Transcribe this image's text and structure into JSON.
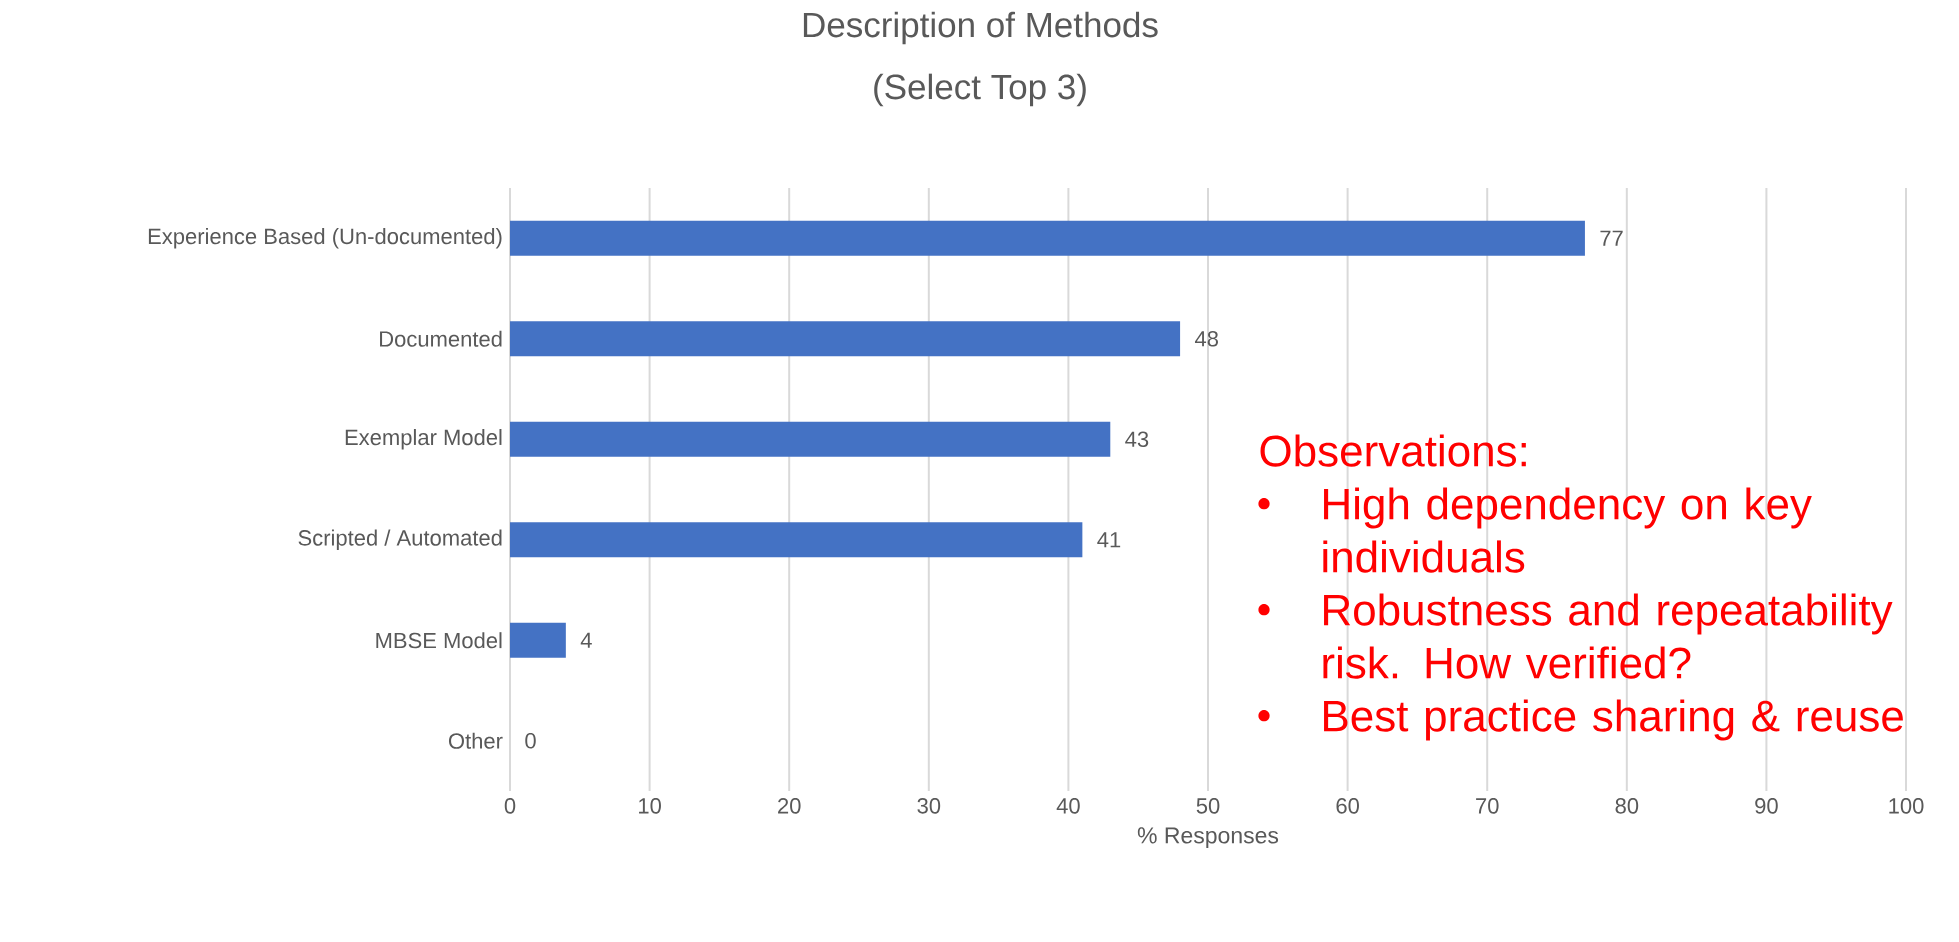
{
  "chart_data": {
    "type": "bar",
    "orientation": "horizontal",
    "title": "Description of Methods",
    "subtitle": "(Select Top 3)",
    "xlabel": "% Responses",
    "categories": [
      "Experience Based (Un-documented)",
      "Documented",
      "Exemplar Model",
      "Scripted / Automated",
      "MBSE Model",
      "Other"
    ],
    "values": [
      77,
      48,
      43,
      41,
      4,
      0
    ],
    "color": "#4472c4",
    "data_labels": true,
    "xlim": [
      0,
      100
    ],
    "xticks": [
      0,
      10,
      20,
      30,
      40,
      50,
      60,
      70,
      80,
      90,
      100
    ],
    "grid": "x",
    "annotations": [
      "Observations:",
      "High dependency on key individuals",
      "Robustness and repeatability risk. How verified?",
      "Best practice sharing & reuse"
    ]
  }
}
